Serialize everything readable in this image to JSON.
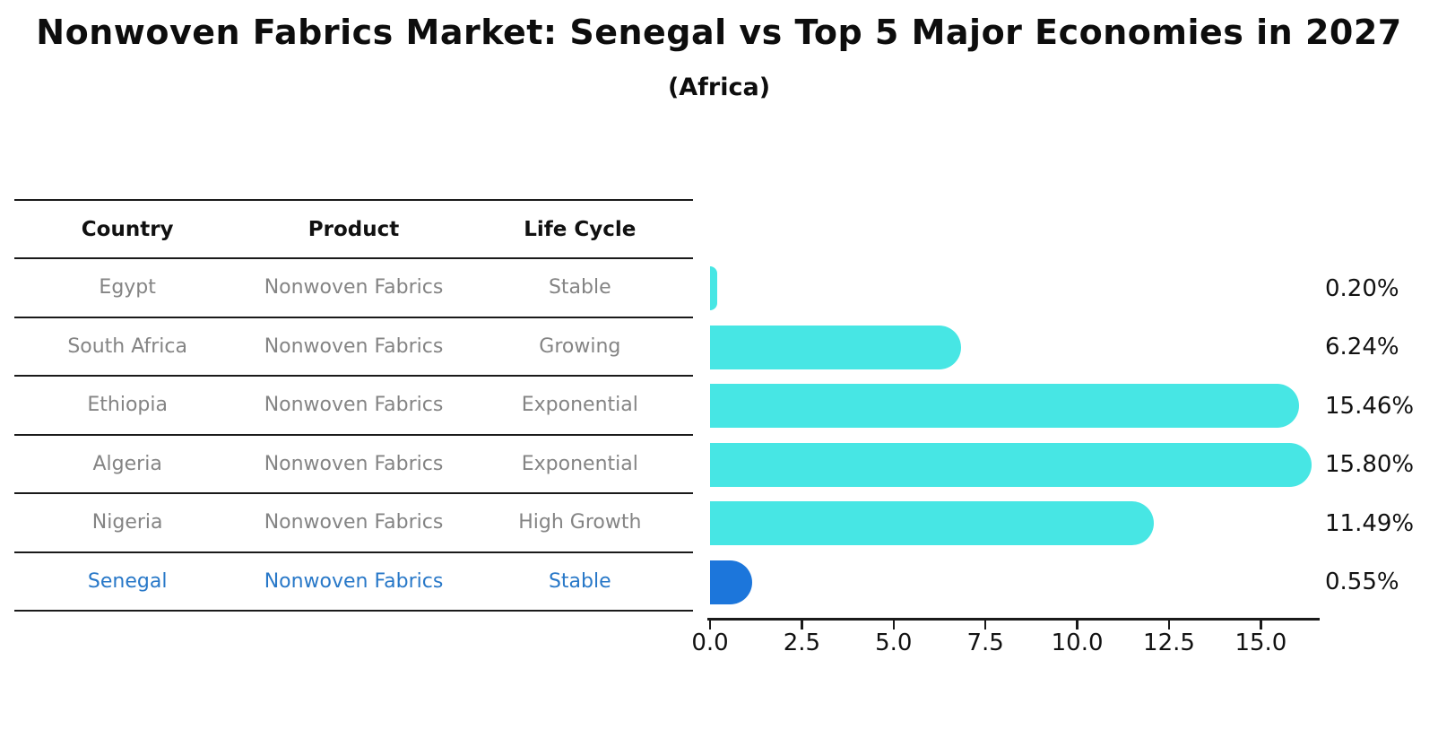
{
  "title": "Nonwoven Fabrics Market: Senegal vs Top 5 Major Economies in 2027",
  "subtitle": "(Africa)",
  "table": {
    "headers": [
      "Country",
      "Product",
      "Life Cycle"
    ],
    "rows": [
      {
        "country": "Egypt",
        "product": "Nonwoven Fabrics",
        "life_cycle": "Stable",
        "highlight": false
      },
      {
        "country": "South Africa",
        "product": "Nonwoven Fabrics",
        "life_cycle": "Growing",
        "highlight": false
      },
      {
        "country": "Ethiopia",
        "product": "Nonwoven Fabrics",
        "life_cycle": "Exponential",
        "highlight": false
      },
      {
        "country": "Algeria",
        "product": "Nonwoven Fabrics",
        "life_cycle": "Exponential",
        "highlight": false
      },
      {
        "country": "Nigeria",
        "product": "Nonwoven Fabrics",
        "life_cycle": "High Growth",
        "highlight": false
      },
      {
        "country": "Senegal",
        "product": "Nonwoven Fabrics",
        "life_cycle": "Stable",
        "highlight": true
      }
    ]
  },
  "chart_data": {
    "type": "bar",
    "orientation": "horizontal",
    "title": "Nonwoven Fabrics Market: Senegal vs Top 5 Major Economies in 2027",
    "subtitle": "(Africa)",
    "categories": [
      "Egypt",
      "South Africa",
      "Ethiopia",
      "Algeria",
      "Nigeria",
      "Senegal"
    ],
    "values": [
      0.2,
      6.24,
      15.46,
      15.8,
      11.49,
      0.55
    ],
    "value_labels": [
      "0.20%",
      "6.24%",
      "15.46%",
      "15.80%",
      "11.49%",
      "0.55%"
    ],
    "xlabel": "",
    "ylabel": "",
    "xlim": [
      0,
      16.6
    ],
    "x_tick_labels": [
      "0.0",
      "2.5",
      "5.0",
      "7.5",
      "10.0",
      "12.5",
      "15.0"
    ],
    "x_tick_values": [
      0,
      2.5,
      5,
      7.5,
      10,
      12.5,
      15
    ],
    "grid": false,
    "legend": false,
    "highlight_index": 5
  },
  "colors": {
    "bar": "#47E6E4",
    "highlight_bar": "#1C76DB",
    "highlight_text": "#2878C8",
    "row_text": "#848484",
    "header_text": "#111111",
    "axis": "#1a1a1a"
  }
}
